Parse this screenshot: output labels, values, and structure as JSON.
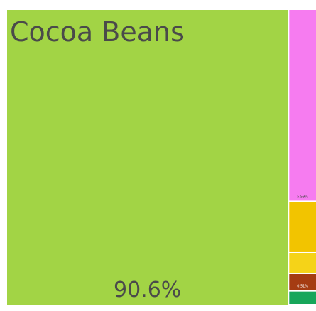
{
  "chart_data": {
    "type": "treemap",
    "title": "",
    "colors": {
      "cocoa_beans": "#a2d445",
      "pink": "#f67cf0",
      "gold": "#f2c400",
      "yellow": "#f5d318",
      "brown": "#a53c12",
      "green": "#17a65a",
      "label": "#4a4a4a"
    },
    "items": [
      {
        "name": "Cocoa Beans",
        "value": 90.6,
        "value_label": "90.6%",
        "color": "#a2d445"
      },
      {
        "name": "",
        "value": 5.59,
        "value_label": "5.59%",
        "color": "#f67cf0"
      },
      {
        "name": "",
        "value": 1.5,
        "value_label": "",
        "color": "#f2c400"
      },
      {
        "name": "",
        "value": 0.6,
        "value_label": "",
        "color": "#f5d318"
      },
      {
        "name": "",
        "value": 0.51,
        "value_label": "0.51%",
        "color": "#a53c12"
      },
      {
        "name": "",
        "value": 0.4,
        "value_label": "",
        "color": "#17a65a"
      }
    ]
  }
}
